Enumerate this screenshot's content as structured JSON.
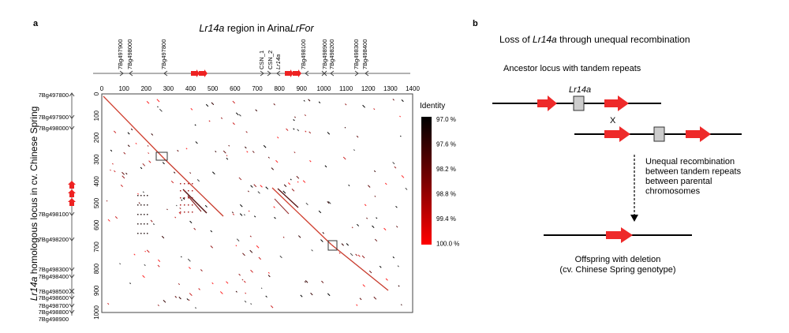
{
  "panel_a": {
    "label": "a",
    "title_pre": "Lr14a",
    "title_mid": " region in Arina",
    "title_post": "LrFor",
    "top_genes": [
      "7Bg497900",
      "7Bg498000",
      "7Bg497800",
      "CSN_1",
      "CSN_2",
      "Lr14a",
      "7Bg498100",
      "7Bg498900",
      "7Bg498200",
      "7Bg498300",
      "7Bg498400"
    ],
    "x_ticks": [
      "0",
      "100",
      "200",
      "300",
      "400",
      "500",
      "600",
      "700",
      "800",
      "900",
      "1000",
      "1100",
      "1200",
      "1300",
      "1400"
    ],
    "y_ticks": [
      "0",
      "100",
      "200",
      "300",
      "400",
      "500",
      "600",
      "700",
      "800",
      "900",
      "1000"
    ],
    "left_genes": [
      "7Bg497800",
      "7Bg497900",
      "7Bg498000",
      "7Bg498100",
      "7Bg498200",
      "7Bg498300",
      "7Bg498400",
      "7Bg498500",
      "7Bg498600",
      "7Bg498700",
      "7Bg498800",
      "7Bg498900"
    ],
    "y_title_pre": "Lr14a",
    "y_title_post": " homologous locus in cv. Chinese Spring",
    "legend_title": "Identity",
    "legend_labels": [
      "97.0 %",
      "97.6 %",
      "98.2 %",
      "98.8 %",
      "99.4 %",
      "100.0 %"
    ],
    "colors": {
      "identity_low": "#000000",
      "identity_high": "#ff0000",
      "repeat_arrow": "#ee2222",
      "axis": "#555555"
    }
  },
  "panel_b": {
    "label": "b",
    "title_pre": "Loss of ",
    "title_gene": "Lr14a",
    "title_post": " through unequal recombination",
    "ancestor_label": "Ancestor locus with tandem repeats",
    "gene_label": "Lr14a",
    "cross_symbol": "X",
    "recomb_lines": [
      "Unequal recombination",
      "between tandem repeats",
      "between parental",
      "chromosomes"
    ],
    "offspring_lines": [
      "Offspring with deletion",
      "(cv. Chinese Spring genotype)"
    ],
    "colors": {
      "arrow": "#ee2a2a",
      "gene_box": "#cccccc"
    }
  }
}
